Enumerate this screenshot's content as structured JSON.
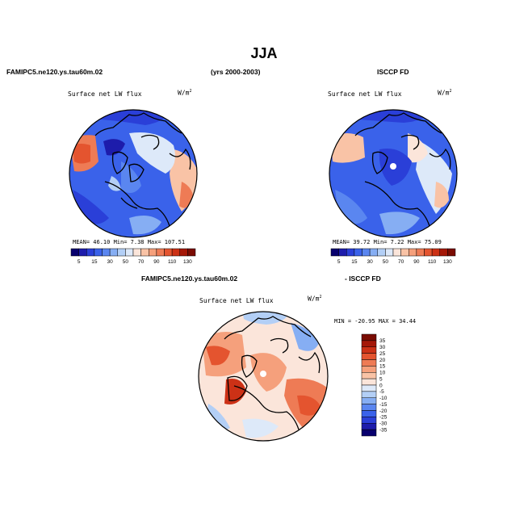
{
  "title": "JJA",
  "headers": {
    "left_model": "FAMIPC5.ne120.ys.tau60m.02",
    "years": "(yrs 2000-2003)",
    "right_obs": "ISCCP FD",
    "diff_model": "FAMIPC5.ne120.ys.tau60m.02",
    "diff_obs": "- ISCCP FD"
  },
  "panels": {
    "model": {
      "label": "Surface net LW flux",
      "unit": "W/m",
      "unit_exp": "2",
      "mean_text": "MEAN=  46.10  Min=   7.38  Max= 107.51"
    },
    "obs": {
      "label": "Surface net LW flux",
      "unit": "W/m",
      "unit_exp": "2",
      "mean_text": "MEAN=  39.72  Min=   7.22  Max=  75.09"
    },
    "diff": {
      "label": "Surface net LW flux",
      "unit": "W/m",
      "unit_exp": "2",
      "minmax_text": "MIN = -20.95  MAX =  34.44"
    }
  },
  "chart_data": [
    {
      "type": "heatmap",
      "name": "model",
      "title": "Surface net LW flux",
      "projection": "north polar stereographic",
      "stats": {
        "mean": 46.1,
        "min": 7.38,
        "max": 107.51
      },
      "colorbar": {
        "orientation": "horizontal",
        "levels": [
          5,
          10,
          15,
          20,
          30,
          40,
          50,
          60,
          70,
          80,
          90,
          100,
          110,
          120,
          130
        ],
        "tick_labels": [
          "5",
          "15",
          "30",
          "50",
          "70",
          "90",
          "110",
          "130"
        ],
        "colors": [
          "#08006e",
          "#1d1cab",
          "#2a3fd8",
          "#3a62ea",
          "#5a86f0",
          "#86aef3",
          "#b3cff6",
          "#dde9f9",
          "#fbe5da",
          "#f9c3a6",
          "#f5a07c",
          "#ee7b55",
          "#e4542f",
          "#cc3116",
          "#a51808",
          "#7a0c02"
        ]
      }
    },
    {
      "type": "heatmap",
      "name": "obs",
      "title": "Surface net LW flux",
      "projection": "north polar stereographic",
      "stats": {
        "mean": 39.72,
        "min": 7.22,
        "max": 75.09
      },
      "colorbar": {
        "orientation": "horizontal",
        "levels": [
          5,
          10,
          15,
          20,
          30,
          40,
          50,
          60,
          70,
          80,
          90,
          100,
          110,
          120,
          130
        ],
        "tick_labels": [
          "5",
          "15",
          "30",
          "50",
          "70",
          "90",
          "110",
          "130"
        ],
        "colors": [
          "#08006e",
          "#1d1cab",
          "#2a3fd8",
          "#3a62ea",
          "#5a86f0",
          "#86aef3",
          "#b3cff6",
          "#dde9f9",
          "#fbe5da",
          "#f9c3a6",
          "#f5a07c",
          "#ee7b55",
          "#e4542f",
          "#cc3116",
          "#a51808",
          "#7a0c02"
        ]
      }
    },
    {
      "type": "heatmap",
      "name": "difference",
      "title": "Surface net LW flux",
      "projection": "north polar stereographic",
      "stats": {
        "min": -20.95,
        "max": 34.44
      },
      "colorbar": {
        "orientation": "vertical",
        "levels": [
          -35,
          -30,
          -25,
          -20,
          -15,
          -10,
          -5,
          0,
          5,
          10,
          15,
          20,
          25,
          30,
          35
        ],
        "tick_labels": [
          "35",
          "30",
          "25",
          "20",
          "15",
          "10",
          "5",
          "0",
          "-5",
          "-10",
          "-15",
          "-20",
          "-25",
          "-30",
          "-35"
        ],
        "colors": [
          "#7a0c02",
          "#a51808",
          "#cc3116",
          "#e4542f",
          "#ee7b55",
          "#f5a07c",
          "#f9c3a6",
          "#fbe5da",
          "#dde9f9",
          "#b3cff6",
          "#86aef3",
          "#5a86f0",
          "#3a62ea",
          "#2a3fd8",
          "#1d1cab",
          "#08006e"
        ]
      }
    }
  ]
}
